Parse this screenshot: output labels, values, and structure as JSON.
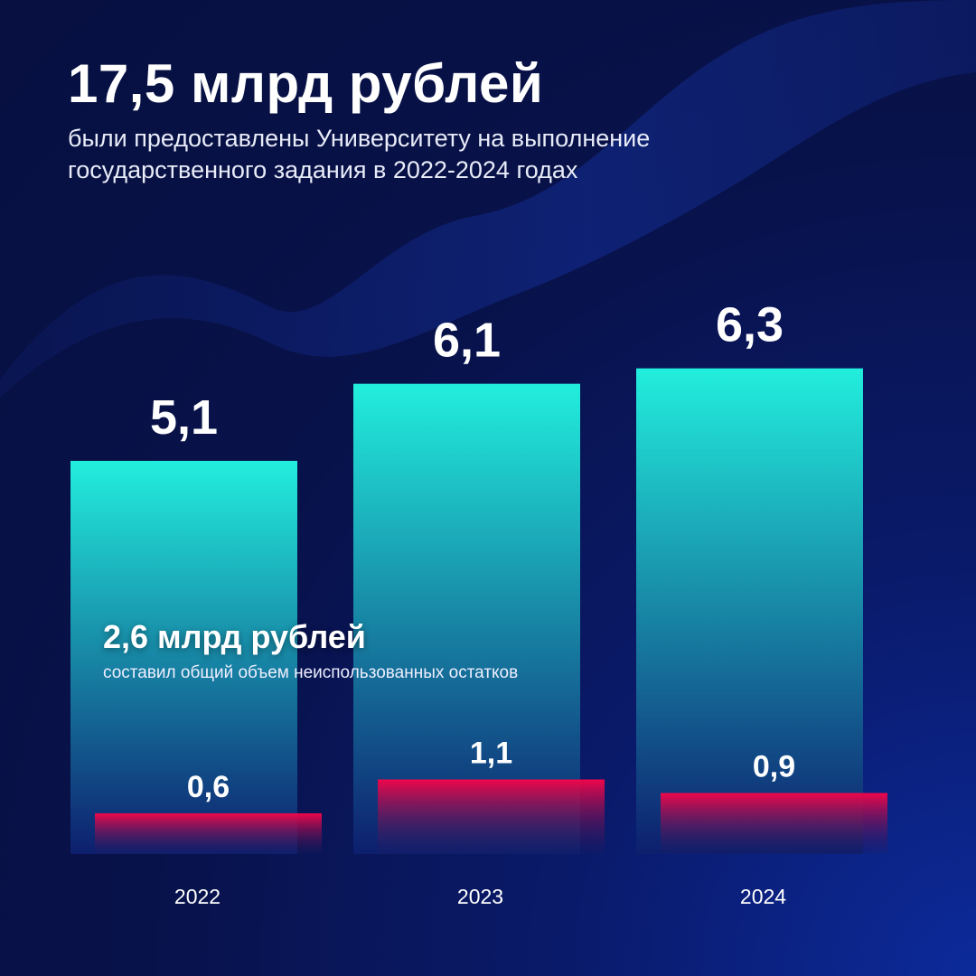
{
  "header": {
    "title": "17,5 млрд рублей",
    "subtitle": "были предоставлены Университету на выполнение государственного задания в 2022-2024 годах"
  },
  "note": {
    "title": "2,6 млрд рублей",
    "text": "составил общий объем неиспользованных остатков"
  },
  "chart_data": {
    "type": "bar",
    "categories": [
      "2022",
      "2023",
      "2024"
    ],
    "series": [
      {
        "values": [
          5.1,
          6.1,
          6.3
        ],
        "labels": [
          "5,1",
          "6,1",
          "6,3"
        ],
        "color_top": "#22eedd",
        "color_bottom": "#0d1f6e"
      },
      {
        "values": [
          0.6,
          1.1,
          0.9
        ],
        "labels": [
          "0,6",
          "1,1",
          "0,9"
        ],
        "color_top": "#f0064a",
        "color_bottom": "#1a1a5e"
      }
    ],
    "grid": false,
    "legend": "none"
  },
  "colors": {
    "background": "#08124a"
  }
}
